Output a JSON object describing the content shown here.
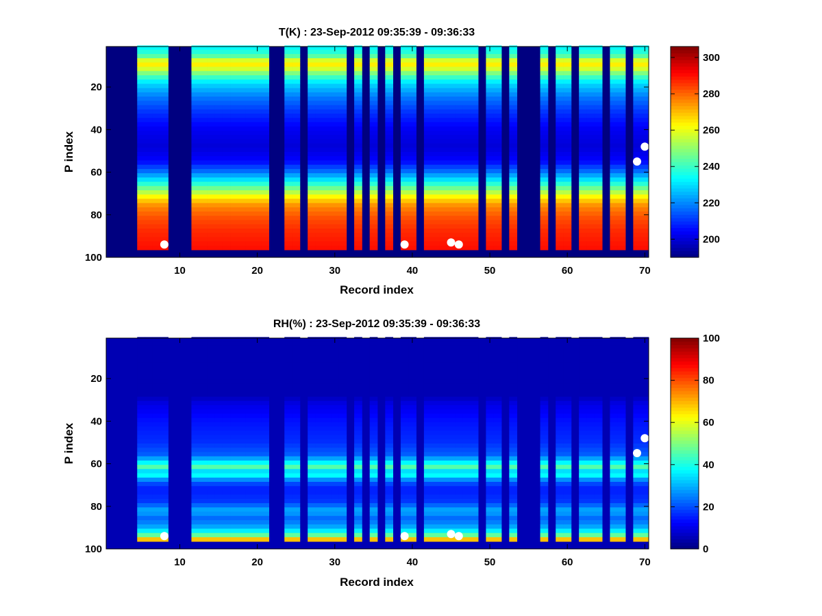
{
  "chart_data": [
    {
      "type": "heatmap",
      "title": "T(K) : 23-Sep-2012 09:35:39 - 09:36:33",
      "xlabel": "Record index",
      "ylabel": "P index",
      "xlim": [
        0.5,
        70.5
      ],
      "ylim": [
        100,
        1
      ],
      "x_ticks": [
        10,
        20,
        30,
        40,
        50,
        60,
        70
      ],
      "y_ticks": [
        20,
        40,
        60,
        80,
        100
      ],
      "colormap": "jet",
      "colorbar": {
        "min": 190,
        "max": 306,
        "ticks": [
          200,
          220,
          240,
          260,
          280,
          300
        ]
      },
      "background_value": 190,
      "valid_records": [
        5,
        6,
        7,
        8,
        12,
        13,
        14,
        15,
        16,
        17,
        18,
        19,
        20,
        21,
        24,
        25,
        27,
        28,
        29,
        30,
        31,
        33,
        35,
        37,
        39,
        40,
        42,
        43,
        44,
        45,
        46,
        47,
        48,
        50,
        51,
        53,
        57,
        59,
        60,
        62,
        63,
        64,
        66,
        67,
        69,
        70
      ],
      "valid_p_max": 96,
      "profile": [
        {
          "p": 1,
          "value": 233
        },
        {
          "p": 5,
          "value": 240
        },
        {
          "p": 8,
          "value": 262
        },
        {
          "p": 10,
          "value": 265
        },
        {
          "p": 13,
          "value": 250
        },
        {
          "p": 18,
          "value": 230
        },
        {
          "p": 25,
          "value": 218
        },
        {
          "p": 32,
          "value": 210
        },
        {
          "p": 40,
          "value": 203
        },
        {
          "p": 48,
          "value": 200
        },
        {
          "p": 55,
          "value": 205
        },
        {
          "p": 60,
          "value": 218
        },
        {
          "p": 64,
          "value": 232
        },
        {
          "p": 68,
          "value": 248
        },
        {
          "p": 72,
          "value": 265
        },
        {
          "p": 76,
          "value": 276
        },
        {
          "p": 82,
          "value": 283
        },
        {
          "p": 88,
          "value": 287
        },
        {
          "p": 96,
          "value": 290
        }
      ],
      "markers": [
        {
          "record": 8,
          "p": 94
        },
        {
          "record": 39,
          "p": 94
        },
        {
          "record": 45,
          "p": 93
        },
        {
          "record": 46,
          "p": 94
        },
        {
          "record": 69,
          "p": 55
        },
        {
          "record": 70,
          "p": 48
        }
      ]
    },
    {
      "type": "heatmap",
      "title": "RH(%) : 23-Sep-2012 09:35:39 - 09:36:33",
      "xlabel": "Record index",
      "ylabel": "P index",
      "xlim": [
        0.5,
        70.5
      ],
      "ylim": [
        100,
        1
      ],
      "x_ticks": [
        10,
        20,
        30,
        40,
        50,
        60,
        70
      ],
      "y_ticks": [
        20,
        40,
        60,
        80,
        100
      ],
      "colormap": "jet",
      "colorbar": {
        "min": 0,
        "max": 100,
        "ticks": [
          0,
          20,
          40,
          60,
          80,
          100
        ]
      },
      "background_value": 5,
      "valid_records": [
        5,
        6,
        7,
        8,
        12,
        13,
        14,
        15,
        16,
        17,
        18,
        19,
        20,
        21,
        24,
        25,
        27,
        28,
        29,
        30,
        31,
        33,
        35,
        37,
        39,
        40,
        42,
        43,
        44,
        45,
        46,
        47,
        48,
        50,
        51,
        53,
        57,
        59,
        60,
        62,
        63,
        64,
        66,
        67,
        69,
        70
      ],
      "valid_p_max": 96,
      "profile": [
        {
          "p": 1,
          "value": 5
        },
        {
          "p": 28,
          "value": 5
        },
        {
          "p": 32,
          "value": 10
        },
        {
          "p": 40,
          "value": 14
        },
        {
          "p": 50,
          "value": 17
        },
        {
          "p": 56,
          "value": 22
        },
        {
          "p": 59,
          "value": 35
        },
        {
          "p": 62,
          "value": 48
        },
        {
          "p": 64,
          "value": 30
        },
        {
          "p": 66,
          "value": 40
        },
        {
          "p": 68,
          "value": 22
        },
        {
          "p": 72,
          "value": 15
        },
        {
          "p": 78,
          "value": 18
        },
        {
          "p": 82,
          "value": 30
        },
        {
          "p": 86,
          "value": 22
        },
        {
          "p": 90,
          "value": 30
        },
        {
          "p": 93,
          "value": 42
        },
        {
          "p": 95,
          "value": 62
        },
        {
          "p": 96,
          "value": 75
        }
      ],
      "markers": [
        {
          "record": 8,
          "p": 94
        },
        {
          "record": 39,
          "p": 94
        },
        {
          "record": 45,
          "p": 93
        },
        {
          "record": 46,
          "p": 94
        },
        {
          "record": 69,
          "p": 55
        },
        {
          "record": 70,
          "p": 48
        }
      ]
    }
  ]
}
